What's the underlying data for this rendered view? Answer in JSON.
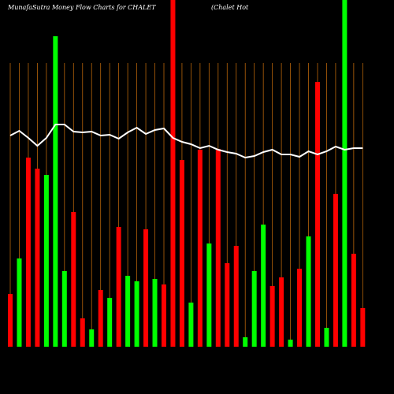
{
  "chart_data": {
    "type": "bar",
    "title": "MunafaSutra  Money Flow  Charts for CHALET",
    "subtitle": "(Chalet Hot",
    "ylim": [
      0,
      440
    ],
    "grid": true,
    "grid_color": "#b8650a",
    "background": "#000000",
    "series": [
      {
        "colors": [
          "#ff0000",
          "#00ff00",
          "#ff0000",
          "#ff0000",
          "#00ff00",
          "#00ff00",
          "#00ff00",
          "#ff0000",
          "#ff0000",
          "#00ff00",
          "#ff0000",
          "#00ff00",
          "#ff0000",
          "#00ff00",
          "#00ff00",
          "#ff0000",
          "#00ff00",
          "#ff0000",
          "#ff0000",
          "#ff0000",
          "#00ff00",
          "#ff0000",
          "#00ff00",
          "#ff0000",
          "#ff0000",
          "#ff0000",
          "#00ff00",
          "#00ff00",
          "#00ff00",
          "#ff0000",
          "#ff0000",
          "#00ff00",
          "#ff0000",
          "#00ff00",
          "#ff0000",
          "#00ff00",
          "#ff0000",
          "#00ff00",
          "#ff0000",
          "#ff0000"
        ],
        "values": [
          67,
          112,
          240,
          226,
          218,
          394,
          96,
          171,
          36,
          22,
          72,
          62,
          152,
          90,
          83,
          149,
          86,
          79,
          440,
          237,
          56,
          250,
          131,
          251,
          106,
          128,
          12,
          96,
          155,
          77,
          88,
          9,
          99,
          140,
          336,
          24,
          194,
          440,
          118,
          49
        ]
      },
      {
        "type": "line",
        "color": "#ffffff",
        "values": [
          268,
          274,
          265,
          255,
          265,
          282,
          282,
          273,
          272,
          273,
          268,
          269,
          264,
          272,
          278,
          270,
          275,
          277,
          265,
          260,
          257,
          252,
          255,
          250,
          247,
          245,
          240,
          242,
          247,
          250,
          244,
          244,
          241,
          248,
          244,
          248,
          254,
          250,
          252,
          252
        ]
      }
    ]
  }
}
